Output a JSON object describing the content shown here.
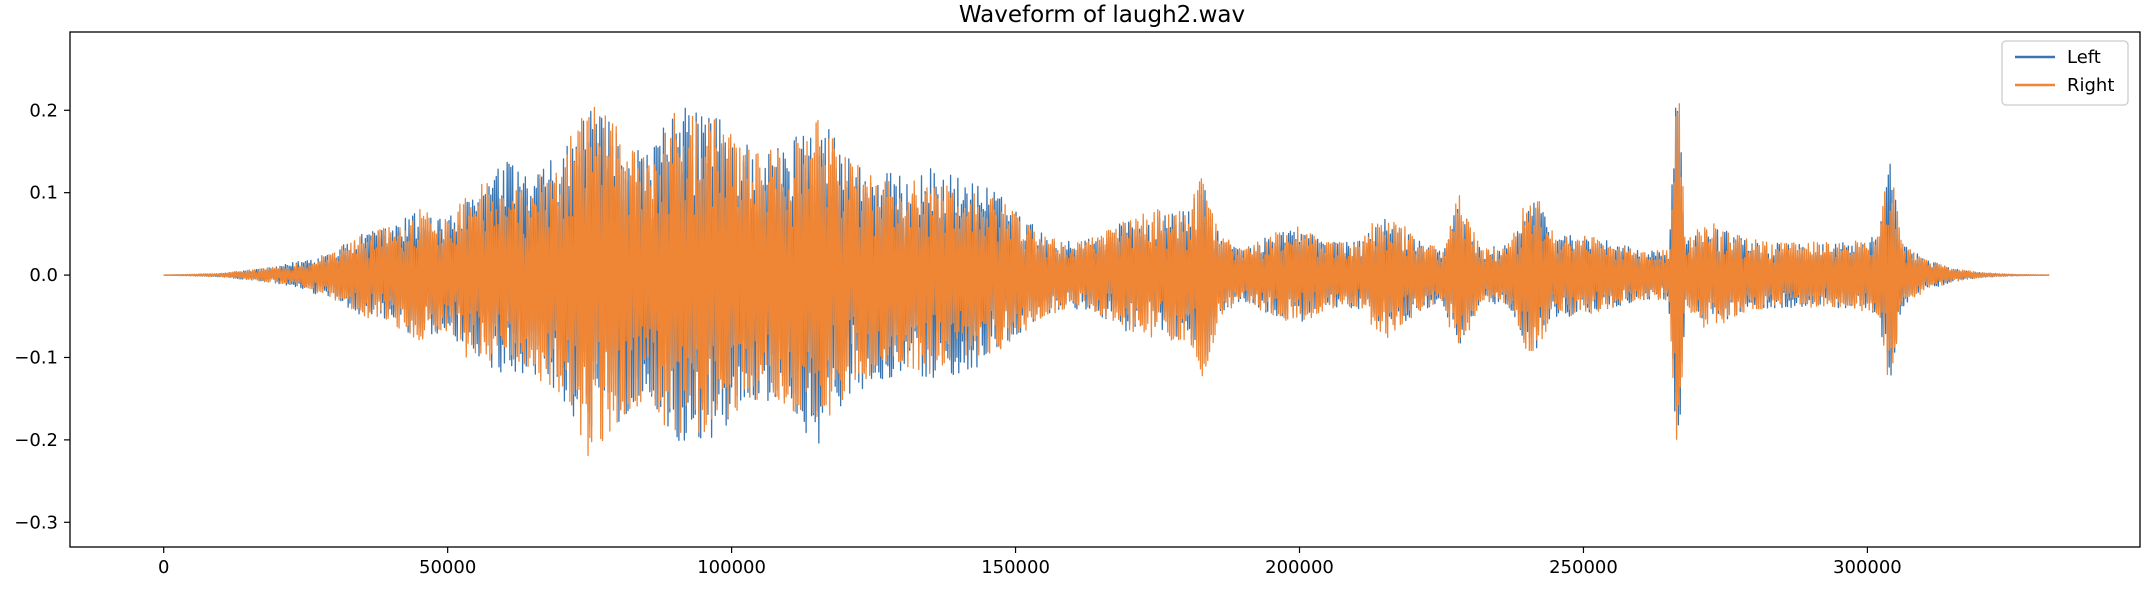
{
  "chart_data": {
    "type": "line",
    "title": "Waveform of laugh2.wav",
    "xlabel": "",
    "ylabel": "",
    "xlim": [
      -16500,
      348000
    ],
    "ylim": [
      -0.33,
      0.295
    ],
    "x_ticks": [
      0,
      50000,
      100000,
      150000,
      200000,
      250000,
      300000
    ],
    "x_tick_labels": [
      "0",
      "50000",
      "100000",
      "150000",
      "200000",
      "250000",
      "300000"
    ],
    "y_ticks": [
      0.2,
      0.1,
      0.0,
      -0.1,
      -0.2,
      -0.3
    ],
    "y_tick_labels": [
      "0.2",
      "0.1",
      "0.0",
      "−0.1",
      "−0.2",
      "−0.3"
    ],
    "grid": false,
    "legend_position": "top-right",
    "n_samples": 332000,
    "series": [
      {
        "name": "Left",
        "color": "#3a75b0",
        "envelope": [
          [
            0,
            0.0
          ],
          [
            10000,
            0.002
          ],
          [
            20000,
            0.01
          ],
          [
            25000,
            0.02
          ],
          [
            30000,
            0.03
          ],
          [
            35000,
            0.05
          ],
          [
            40000,
            0.06
          ],
          [
            45000,
            0.08
          ],
          [
            50000,
            0.07
          ],
          [
            55000,
            0.1
          ],
          [
            60000,
            0.14
          ],
          [
            65000,
            0.12
          ],
          [
            70000,
            0.15
          ],
          [
            75000,
            0.2
          ],
          [
            80000,
            0.18
          ],
          [
            85000,
            0.15
          ],
          [
            90000,
            0.2
          ],
          [
            95000,
            0.21
          ],
          [
            100000,
            0.18
          ],
          [
            105000,
            0.15
          ],
          [
            110000,
            0.16
          ],
          [
            115000,
            0.21
          ],
          [
            120000,
            0.15
          ],
          [
            125000,
            0.13
          ],
          [
            130000,
            0.12
          ],
          [
            135000,
            0.13
          ],
          [
            140000,
            0.12
          ],
          [
            145000,
            0.11
          ],
          [
            150000,
            0.08
          ],
          [
            155000,
            0.05
          ],
          [
            160000,
            0.04
          ],
          [
            165000,
            0.05
          ],
          [
            170000,
            0.07
          ],
          [
            175000,
            0.07
          ],
          [
            180000,
            0.08
          ],
          [
            183000,
            0.11
          ],
          [
            186000,
            0.05
          ],
          [
            190000,
            0.03
          ],
          [
            195000,
            0.05
          ],
          [
            200000,
            0.06
          ],
          [
            205000,
            0.04
          ],
          [
            210000,
            0.04
          ],
          [
            215000,
            0.07
          ],
          [
            220000,
            0.05
          ],
          [
            225000,
            0.03
          ],
          [
            228000,
            0.09
          ],
          [
            232000,
            0.03
          ],
          [
            237000,
            0.04
          ],
          [
            241000,
            0.1
          ],
          [
            245000,
            0.05
          ],
          [
            250000,
            0.05
          ],
          [
            255000,
            0.04
          ],
          [
            260000,
            0.03
          ],
          [
            265000,
            0.03
          ],
          [
            266500,
            0.25
          ],
          [
            268000,
            0.04
          ],
          [
            272000,
            0.06
          ],
          [
            277000,
            0.05
          ],
          [
            282000,
            0.04
          ],
          [
            287000,
            0.04
          ],
          [
            292000,
            0.04
          ],
          [
            297000,
            0.04
          ],
          [
            302000,
            0.05
          ],
          [
            304000,
            0.14
          ],
          [
            306000,
            0.04
          ],
          [
            310000,
            0.02
          ],
          [
            315000,
            0.008
          ],
          [
            320000,
            0.003
          ],
          [
            325000,
            0.001
          ],
          [
            332000,
            0.0
          ]
        ]
      },
      {
        "name": "Right",
        "color": "#ef8636",
        "envelope": [
          [
            0,
            0.0
          ],
          [
            10000,
            0.002
          ],
          [
            20000,
            0.01
          ],
          [
            25000,
            0.015
          ],
          [
            30000,
            0.03
          ],
          [
            35000,
            0.05
          ],
          [
            40000,
            0.06
          ],
          [
            45000,
            0.08
          ],
          [
            50000,
            0.07
          ],
          [
            55000,
            0.12
          ],
          [
            60000,
            0.1
          ],
          [
            65000,
            0.12
          ],
          [
            70000,
            0.15
          ],
          [
            75000,
            0.225
          ],
          [
            80000,
            0.18
          ],
          [
            85000,
            0.15
          ],
          [
            90000,
            0.2
          ],
          [
            95000,
            0.2
          ],
          [
            100000,
            0.17
          ],
          [
            105000,
            0.15
          ],
          [
            110000,
            0.16
          ],
          [
            115000,
            0.19
          ],
          [
            120000,
            0.15
          ],
          [
            125000,
            0.12
          ],
          [
            130000,
            0.11
          ],
          [
            135000,
            0.12
          ],
          [
            140000,
            0.1
          ],
          [
            145000,
            0.1
          ],
          [
            150000,
            0.08
          ],
          [
            155000,
            0.05
          ],
          [
            160000,
            0.04
          ],
          [
            165000,
            0.05
          ],
          [
            170000,
            0.07
          ],
          [
            175000,
            0.08
          ],
          [
            180000,
            0.08
          ],
          [
            183000,
            0.13
          ],
          [
            186000,
            0.05
          ],
          [
            190000,
            0.03
          ],
          [
            195000,
            0.05
          ],
          [
            200000,
            0.06
          ],
          [
            205000,
            0.04
          ],
          [
            210000,
            0.04
          ],
          [
            215000,
            0.08
          ],
          [
            220000,
            0.05
          ],
          [
            225000,
            0.03
          ],
          [
            228000,
            0.1
          ],
          [
            232000,
            0.03
          ],
          [
            237000,
            0.04
          ],
          [
            241000,
            0.11
          ],
          [
            245000,
            0.05
          ],
          [
            250000,
            0.05
          ],
          [
            255000,
            0.04
          ],
          [
            260000,
            0.03
          ],
          [
            265000,
            0.03
          ],
          [
            266500,
            0.27
          ],
          [
            268000,
            0.04
          ],
          [
            272000,
            0.07
          ],
          [
            277000,
            0.05
          ],
          [
            282000,
            0.04
          ],
          [
            287000,
            0.04
          ],
          [
            292000,
            0.04
          ],
          [
            297000,
            0.04
          ],
          [
            302000,
            0.05
          ],
          [
            304000,
            0.15
          ],
          [
            306000,
            0.04
          ],
          [
            310000,
            0.02
          ],
          [
            315000,
            0.008
          ],
          [
            320000,
            0.003
          ],
          [
            325000,
            0.001
          ],
          [
            332000,
            0.0
          ]
        ]
      }
    ]
  }
}
